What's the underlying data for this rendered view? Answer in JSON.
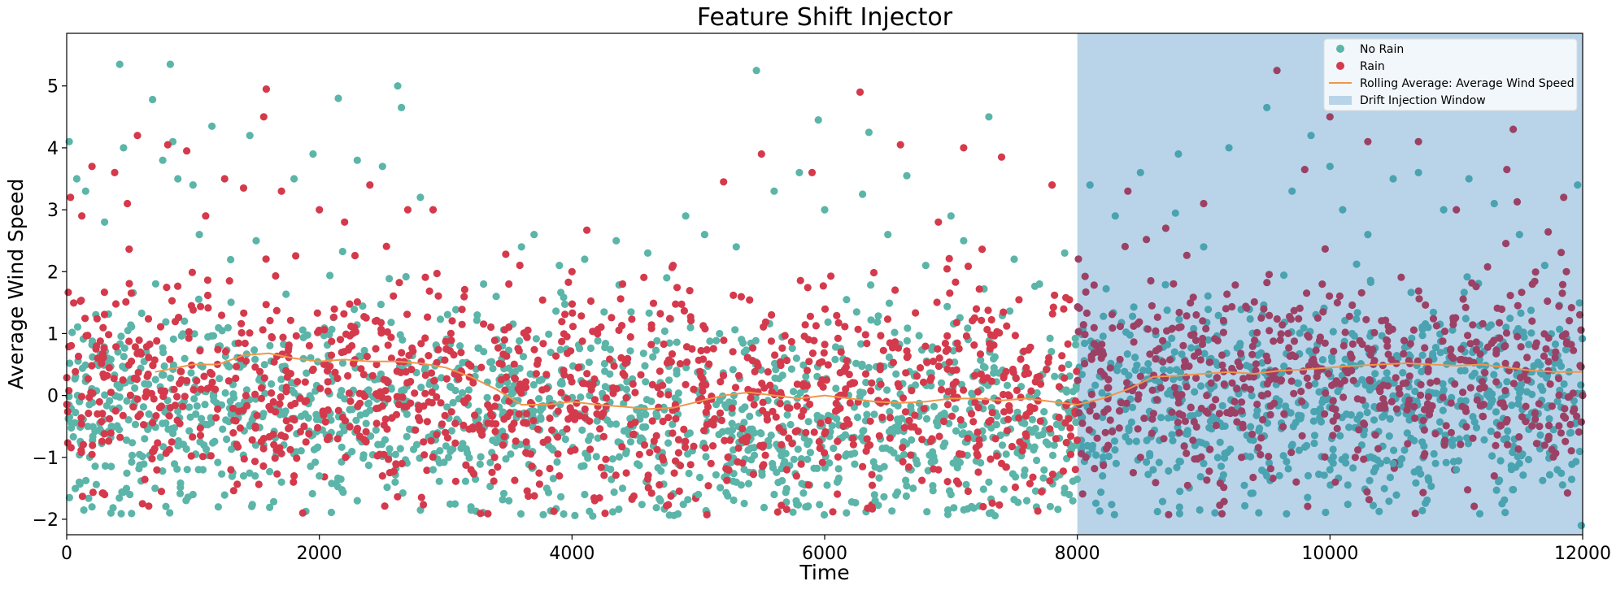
{
  "chart_data": {
    "type": "scatter",
    "title": "Feature Shift Injector",
    "xlabel": "Time",
    "ylabel": "Average Wind Speed",
    "xlim": [
      0,
      12000
    ],
    "ylim": [
      -2.25,
      5.85
    ],
    "x_ticks": [
      0,
      2000,
      4000,
      6000,
      8000,
      10000,
      12000
    ],
    "x_tick_labels": [
      "0",
      "2000",
      "4000",
      "6000",
      "8000",
      "10000",
      "12000"
    ],
    "y_ticks": [
      -2,
      -1,
      0,
      1,
      2,
      3,
      4,
      5
    ],
    "y_tick_labels": [
      "−2",
      "−1",
      "0",
      "1",
      "2",
      "3",
      "4",
      "5"
    ],
    "grid": false,
    "legend_position": "top-right",
    "drift_window": {
      "name": "Drift Injection Window",
      "x_start": 8000,
      "x_end": 12000,
      "color": "#b9d4e8"
    },
    "series": [
      {
        "name": "No Rain",
        "color": "#5bb5a8",
        "color_in_window": "#4aa3b0",
        "points": [
          [
            20,
            4.1
          ],
          [
            80,
            3.5
          ],
          [
            150,
            3.3
          ],
          [
            300,
            2.8
          ],
          [
            420,
            5.35
          ],
          [
            450,
            4.0
          ],
          [
            680,
            4.78
          ],
          [
            760,
            3.8
          ],
          [
            820,
            5.35
          ],
          [
            840,
            4.1
          ],
          [
            880,
            3.5
          ],
          [
            1000,
            3.4
          ],
          [
            1050,
            2.6
          ],
          [
            1150,
            4.35
          ],
          [
            1450,
            4.2
          ],
          [
            1500,
            2.5
          ],
          [
            1800,
            3.5
          ],
          [
            1950,
            3.9
          ],
          [
            2150,
            4.8
          ],
          [
            2300,
            3.8
          ],
          [
            2500,
            3.7
          ],
          [
            2620,
            5.0
          ],
          [
            2650,
            4.65
          ],
          [
            2800,
            3.2
          ],
          [
            3250,
            1.3
          ],
          [
            3300,
            1.8
          ],
          [
            3400,
            1.6
          ],
          [
            3600,
            2.4
          ],
          [
            3700,
            2.6
          ],
          [
            3900,
            2.1
          ],
          [
            4100,
            2.2
          ],
          [
            4350,
            2.5
          ],
          [
            4600,
            2.3
          ],
          [
            4750,
            1.9
          ],
          [
            4900,
            2.9
          ],
          [
            5050,
            2.6
          ],
          [
            5300,
            2.4
          ],
          [
            5460,
            5.25
          ],
          [
            5600,
            3.3
          ],
          [
            5800,
            3.6
          ],
          [
            5950,
            4.45
          ],
          [
            6000,
            3.0
          ],
          [
            6300,
            3.25
          ],
          [
            6350,
            4.25
          ],
          [
            6500,
            2.6
          ],
          [
            6650,
            3.55
          ],
          [
            6800,
            2.1
          ],
          [
            7000,
            2.9
          ],
          [
            7100,
            2.5
          ],
          [
            7300,
            4.5
          ],
          [
            7500,
            2.2
          ],
          [
            7700,
            1.8
          ],
          [
            7900,
            2.3
          ],
          [
            8100,
            3.4
          ],
          [
            8300,
            2.9
          ],
          [
            8500,
            3.6
          ],
          [
            8800,
            3.9
          ],
          [
            9000,
            2.4
          ],
          [
            9200,
            4.0
          ],
          [
            9500,
            4.65
          ],
          [
            9700,
            3.3
          ],
          [
            9850,
            4.2
          ],
          [
            10000,
            3.7
          ],
          [
            10100,
            3.0
          ],
          [
            10300,
            2.6
          ],
          [
            10500,
            3.5
          ],
          [
            10700,
            3.6
          ],
          [
            10900,
            3.0
          ],
          [
            11100,
            3.5
          ],
          [
            11300,
            3.1
          ],
          [
            11500,
            2.6
          ],
          [
            11700,
            2.1
          ],
          [
            11960,
            3.4
          ],
          [
            11990,
            -2.1
          ],
          [
            100,
            -1.4
          ],
          [
            200,
            -1.8
          ],
          [
            350,
            -1.9
          ],
          [
            500,
            -1.6
          ],
          [
            700,
            -1.5
          ],
          [
            1000,
            -1.6
          ],
          [
            1200,
            -1.8
          ],
          [
            1400,
            -1.3
          ],
          [
            1700,
            -1.4
          ],
          [
            2000,
            -1.3
          ],
          [
            2300,
            -1.7
          ],
          [
            2600,
            -1.4
          ],
          [
            2900,
            -1.2
          ],
          [
            3200,
            -1.8
          ],
          [
            3500,
            -1.7
          ],
          [
            3800,
            -1.5
          ],
          [
            4100,
            -1.6
          ],
          [
            4400,
            -1.5
          ],
          [
            4700,
            -1.7
          ],
          [
            5000,
            -1.6
          ],
          [
            5300,
            -1.4
          ],
          [
            5600,
            -1.6
          ],
          [
            5850,
            -1.8
          ],
          [
            6100,
            -1.4
          ],
          [
            6400,
            -1.7
          ],
          [
            6700,
            -1.5
          ],
          [
            7000,
            -1.6
          ],
          [
            7300,
            -1.4
          ],
          [
            7600,
            -1.7
          ],
          [
            7900,
            -1.5
          ],
          [
            8200,
            -1.3
          ],
          [
            8600,
            -1.2
          ],
          [
            9000,
            -1.1
          ],
          [
            9500,
            -1.3
          ],
          [
            10000,
            -1.2
          ],
          [
            10500,
            -1.1
          ],
          [
            11000,
            -1.2
          ],
          [
            11500,
            -1.1
          ],
          [
            11800,
            -1.2
          ]
        ],
        "band": {
          "mean": -0.2,
          "spread": 1.0,
          "n": 2200
        }
      },
      {
        "name": "Rain",
        "color": "#d43a4c",
        "color_in_window": "#9c4166",
        "points": [
          [
            30,
            3.2
          ],
          [
            120,
            2.9
          ],
          [
            200,
            3.7
          ],
          [
            380,
            3.6
          ],
          [
            480,
            3.1
          ],
          [
            560,
            4.2
          ],
          [
            800,
            4.05
          ],
          [
            950,
            3.95
          ],
          [
            1100,
            2.9
          ],
          [
            1250,
            3.5
          ],
          [
            1400,
            3.35
          ],
          [
            1580,
            4.95
          ],
          [
            1560,
            4.5
          ],
          [
            1700,
            3.3
          ],
          [
            2000,
            3.0
          ],
          [
            2200,
            2.8
          ],
          [
            2400,
            3.4
          ],
          [
            2700,
            3.0
          ],
          [
            2900,
            3.0
          ],
          [
            3500,
            1.8
          ],
          [
            4000,
            2.0
          ],
          [
            4400,
            1.8
          ],
          [
            4800,
            2.1
          ],
          [
            5200,
            3.45
          ],
          [
            5500,
            3.9
          ],
          [
            5900,
            3.6
          ],
          [
            6280,
            4.9
          ],
          [
            6600,
            4.05
          ],
          [
            6900,
            2.8
          ],
          [
            7100,
            4.0
          ],
          [
            7400,
            3.85
          ],
          [
            7800,
            3.4
          ],
          [
            8400,
            3.3
          ],
          [
            8700,
            2.7
          ],
          [
            9000,
            3.1
          ],
          [
            9580,
            5.25
          ],
          [
            9800,
            3.65
          ],
          [
            10000,
            4.5
          ],
          [
            10300,
            4.1
          ],
          [
            10700,
            4.1
          ],
          [
            11000,
            3.0
          ],
          [
            11450,
            4.3
          ],
          [
            11400,
            3.65
          ],
          [
            11850,
            3.2
          ],
          [
            300,
            -1.6
          ],
          [
            600,
            -1.75
          ],
          [
            750,
            -1.55
          ],
          [
            1300,
            -1.2
          ],
          [
            1800,
            -1.3
          ],
          [
            2500,
            -1.3
          ],
          [
            3200,
            -1.2
          ],
          [
            3900,
            -1.3
          ],
          [
            4600,
            -1.35
          ],
          [
            5100,
            -1.1
          ],
          [
            5700,
            -1.2
          ],
          [
            6300,
            -1.15
          ],
          [
            6900,
            -1.2
          ],
          [
            7400,
            -1.1
          ],
          [
            8500,
            -1.0
          ],
          [
            9300,
            -1.0
          ],
          [
            10200,
            -1.0
          ],
          [
            11300,
            -1.3
          ]
        ],
        "band": {
          "mean": 0.25,
          "spread": 1.05,
          "n": 1800
        }
      }
    ],
    "rolling_average": {
      "name": "Rolling Average: Average Wind Speed",
      "color": "#f0964a",
      "x": [
        700,
        1000,
        1200,
        1400,
        1600,
        1800,
        2000,
        2200,
        2400,
        2600,
        2800,
        3000,
        3200,
        3400,
        3600,
        3800,
        4000,
        4200,
        4400,
        4600,
        4800,
        5000,
        5200,
        5400,
        5600,
        5800,
        6000,
        6200,
        6400,
        6600,
        6800,
        7000,
        7200,
        7400,
        7600,
        7800,
        8000,
        8200,
        8400,
        8600,
        8800,
        9000,
        9200,
        9400,
        9600,
        9800,
        10000,
        10200,
        10400,
        10600,
        10800,
        11000,
        11200,
        11400,
        11600,
        11800,
        12000
      ],
      "y": [
        0.38,
        0.5,
        0.5,
        0.65,
        0.68,
        0.6,
        0.55,
        0.58,
        0.55,
        0.55,
        0.52,
        0.45,
        0.3,
        0.1,
        -0.15,
        -0.15,
        -0.1,
        -0.15,
        -0.18,
        -0.22,
        -0.2,
        -0.1,
        0.0,
        0.05,
        0.0,
        -0.05,
        0.0,
        -0.05,
        -0.1,
        -0.12,
        -0.1,
        -0.05,
        -0.05,
        -0.08,
        -0.05,
        -0.1,
        -0.15,
        -0.05,
        0.1,
        0.3,
        0.32,
        0.35,
        0.38,
        0.35,
        0.4,
        0.42,
        0.45,
        0.48,
        0.5,
        0.52,
        0.5,
        0.48,
        0.5,
        0.45,
        0.4,
        0.38,
        0.38
      ]
    }
  }
}
